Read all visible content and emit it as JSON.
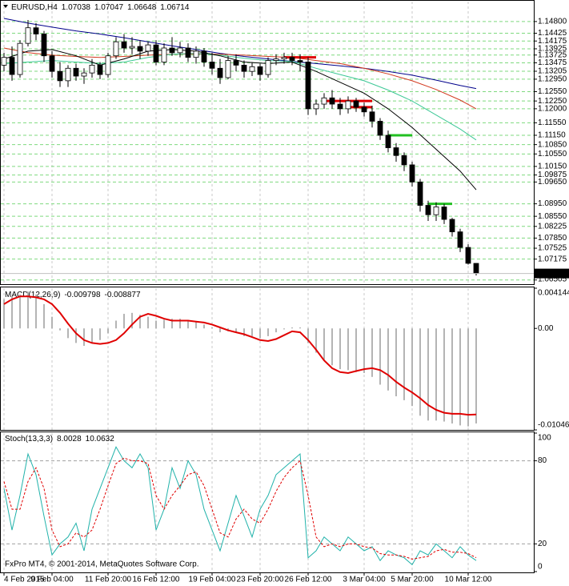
{
  "chart_data": [
    {
      "type": "candlestick",
      "title": "EURUSD,H4",
      "categories": [
        "4 Feb 2015",
        null,
        null,
        null,
        null,
        null,
        "9 Feb 04:00",
        null,
        null,
        null,
        null,
        null,
        null,
        "11 Feb 20:00",
        null,
        null,
        null,
        null,
        null,
        "16 Feb 12:00",
        null,
        null,
        null,
        null,
        null,
        null,
        "19 Feb 04:00",
        null,
        null,
        null,
        null,
        null,
        "23 Feb 20:00",
        null,
        null,
        null,
        null,
        null,
        "26 Feb 12:00",
        null,
        null,
        null,
        null,
        null,
        null,
        "3 Mar 04:00",
        null,
        null,
        null,
        null,
        null,
        "5 Mar 20:00",
        null,
        null,
        null,
        null,
        null,
        null,
        "10 Mar 12:00",
        null
      ],
      "open": [
        1.134,
        1.1365,
        1.131,
        1.141,
        1.146,
        1.144,
        1.137,
        1.132,
        1.129,
        1.133,
        1.1305,
        1.1315,
        1.134,
        1.131,
        1.137,
        1.1415,
        1.1395,
        1.14,
        1.1385,
        1.1405,
        1.135,
        1.1395,
        1.138,
        1.1395,
        1.1365,
        1.1385,
        1.135,
        1.133,
        1.13,
        1.1355,
        1.134,
        1.132,
        1.1335,
        1.131,
        1.1355,
        1.136,
        1.1365,
        1.1355,
        1.135,
        1.12,
        1.1215,
        1.1235,
        1.1215,
        1.12,
        1.1225,
        1.1205,
        1.119,
        1.116,
        1.1115,
        1.1075,
        1.105,
        1.102,
        1.0965,
        1.089,
        1.086,
        1.0885,
        1.0845,
        1.0805,
        1.0755,
        1.07038
      ],
      "high": [
        1.138,
        1.14,
        1.142,
        1.1485,
        1.1475,
        1.145,
        1.1385,
        1.135,
        1.134,
        1.1345,
        1.133,
        1.136,
        1.135,
        1.138,
        1.143,
        1.144,
        1.143,
        1.142,
        1.1415,
        1.142,
        1.141,
        1.143,
        1.1415,
        1.141,
        1.14,
        1.1395,
        1.138,
        1.136,
        1.137,
        1.1375,
        1.1355,
        1.135,
        1.1345,
        1.1365,
        1.1375,
        1.138,
        1.138,
        1.1375,
        1.1365,
        1.123,
        1.125,
        1.126,
        1.1235,
        1.124,
        1.1235,
        1.122,
        1.121,
        1.117,
        1.113,
        1.109,
        1.106,
        1.103,
        1.0975,
        1.0905,
        1.09,
        1.0895,
        1.085,
        1.0815,
        1.0765,
        1.07047
      ],
      "low": [
        1.132,
        1.129,
        1.13,
        1.14,
        1.142,
        1.135,
        1.13,
        1.127,
        1.127,
        1.129,
        1.128,
        1.13,
        1.1295,
        1.13,
        1.136,
        1.138,
        1.1375,
        1.136,
        1.137,
        1.134,
        1.134,
        1.137,
        1.1365,
        1.135,
        1.1345,
        1.1335,
        1.131,
        1.128,
        1.1295,
        1.132,
        1.13,
        1.1305,
        1.129,
        1.13,
        1.134,
        1.1345,
        1.134,
        1.132,
        1.118,
        1.118,
        1.12,
        1.12,
        1.118,
        1.1185,
        1.119,
        1.1175,
        1.114,
        1.11,
        1.106,
        1.103,
        1.1,
        1.095,
        1.087,
        1.084,
        1.084,
        1.083,
        1.079,
        1.074,
        1.07,
        1.06648
      ],
      "close": [
        1.1365,
        1.131,
        1.141,
        1.146,
        1.144,
        1.137,
        1.132,
        1.129,
        1.133,
        1.1305,
        1.1315,
        1.134,
        1.131,
        1.137,
        1.1415,
        1.1395,
        1.14,
        1.1385,
        1.1405,
        1.135,
        1.1395,
        1.138,
        1.1395,
        1.1365,
        1.1385,
        1.135,
        1.133,
        1.13,
        1.1355,
        1.134,
        1.132,
        1.1335,
        1.131,
        1.1355,
        1.136,
        1.1365,
        1.1355,
        1.135,
        1.12,
        1.1215,
        1.1235,
        1.1215,
        1.12,
        1.1225,
        1.1205,
        1.119,
        1.116,
        1.1115,
        1.1075,
        1.105,
        1.102,
        1.0965,
        1.089,
        1.086,
        1.0885,
        1.0845,
        1.0805,
        1.0755,
        1.0704,
        1.06714
      ],
      "color": "#000000",
      "series": [
        {
          "color": "#00008b",
          "x": [
            0,
            3,
            6,
            9,
            12,
            15,
            18,
            21,
            24,
            27,
            30,
            33,
            36,
            39,
            42,
            45,
            48,
            51,
            54,
            57,
            59
          ],
          "values": [
            1.149,
            1.1475,
            1.1462,
            1.145,
            1.144,
            1.1428,
            1.1415,
            1.1402,
            1.139,
            1.1378,
            1.1368,
            1.136,
            1.1352,
            1.1345,
            1.1338,
            1.133,
            1.132,
            1.1308,
            1.1292,
            1.1275,
            1.1265
          ]
        },
        {
          "color": "#d2391e",
          "x": [
            0,
            3,
            6,
            9,
            12,
            15,
            18,
            21,
            24,
            27,
            30,
            33,
            36,
            39,
            42,
            45,
            48,
            51,
            54,
            57,
            59
          ],
          "values": [
            1.1395,
            1.138,
            1.1372,
            1.1368,
            1.1365,
            1.1368,
            1.1372,
            1.1375,
            1.1376,
            1.1375,
            1.1372,
            1.1368,
            1.1365,
            1.1355,
            1.1345,
            1.133,
            1.1312,
            1.129,
            1.1262,
            1.1228,
            1.12
          ]
        },
        {
          "color": "#3cc896",
          "x": [
            0,
            3,
            6,
            9,
            12,
            15,
            18,
            21,
            24,
            27,
            30,
            33,
            36,
            39,
            42,
            45,
            48,
            51,
            54,
            57,
            59
          ],
          "values": [
            1.1345,
            1.135,
            1.1355,
            1.135,
            1.1345,
            1.135,
            1.1365,
            1.1375,
            1.1378,
            1.1372,
            1.1362,
            1.1355,
            1.1352,
            1.133,
            1.131,
            1.129,
            1.126,
            1.1225,
            1.118,
            1.1135,
            1.11
          ]
        },
        {
          "color": "#000000",
          "x": [
            0,
            3,
            6,
            9,
            12,
            15,
            18,
            21,
            24,
            27,
            30,
            33,
            36,
            39,
            42,
            45,
            48,
            51,
            54,
            57,
            59
          ],
          "values": [
            1.136,
            1.1385,
            1.139,
            1.137,
            1.134,
            1.136,
            1.1385,
            1.139,
            1.1385,
            1.137,
            1.135,
            1.1345,
            1.135,
            1.132,
            1.1285,
            1.125,
            1.12,
            1.114,
            1.107,
            1.1,
            1.094
          ]
        }
      ],
      "segments": [
        {
          "x": [
            35,
            39
          ],
          "value": 1.1365,
          "color": "#e00000"
        },
        {
          "x": [
            40,
            46
          ],
          "value": 1.1225,
          "color": "#e00000"
        },
        {
          "x": [
            43,
            46
          ],
          "value": 1.1205,
          "color": "#e00000"
        },
        {
          "x": [
            48,
            51
          ],
          "value": 1.1115,
          "color": "#22c022"
        },
        {
          "x": [
            53,
            56
          ],
          "value": 1.0895,
          "color": "#22c022"
        }
      ],
      "ylim": [
        1.0637,
        1.1544
      ],
      "yticks": [
        {
          "value": 1.148,
          "label": "1.14800"
        },
        1.14425,
        1.14175,
        1.13925,
        1.13725,
        1.13475,
        1.13205,
        {
          "value": 1.1295,
          "label": "1.12950"
        },
        {
          "value": 1.1255,
          "label": "1.12550"
        },
        {
          "value": 1.1225,
          "label": "1.12250"
        },
        {
          "value": 1.12,
          "label": "1.12000"
        },
        {
          "value": 1.1155,
          "label": "1.11550"
        },
        {
          "value": 1.1115,
          "label": "1.11150"
        },
        {
          "value": 1.1085,
          "label": "1.10850"
        },
        {
          "value": 1.1055,
          "label": "1.10550"
        },
        {
          "value": 1.1015,
          "label": "1.10150"
        },
        1.09875,
        {
          "value": 1.0965,
          "label": "1.09650"
        },
        {
          "value": 1.0895,
          "label": "1.08950"
        },
        {
          "value": 1.0855,
          "label": "1.08550"
        },
        1.08225,
        {
          "value": 1.0785,
          "label": "1.07850"
        },
        1.07525,
        1.07175,
        1.06505
      ],
      "grid": true,
      "grid_color": "#7fd97f"
    },
    {
      "type": "macd",
      "title": "MACD(12,26,9)",
      "series": [
        {
          "style": "histogram",
          "color": "#b4b4b4",
          "values": [
            0.003,
            0.0033,
            0.0035,
            0.0038,
            0.0035,
            0.0025,
            0.0012,
            -0.0002,
            -0.001,
            -0.0015,
            -0.0018,
            -0.0015,
            -0.0012,
            -0.0005,
            0.0008,
            0.0015,
            0.0016,
            0.0014,
            0.0012,
            0.0008,
            0.0009,
            0.001,
            0.001,
            0.0008,
            0.0007,
            0.0004,
            0.0001,
            -0.0004,
            -0.0003,
            -0.0004,
            -0.0008,
            -0.0008,
            -0.001,
            -0.0008,
            -0.0004,
            -0.0001,
            0.0001,
            0.0001,
            -0.0015,
            -0.0025,
            -0.0032,
            -0.0038,
            -0.0042,
            -0.0043,
            -0.0045,
            -0.0046,
            -0.005,
            -0.0058,
            -0.0064,
            -0.007,
            -0.0074,
            -0.008,
            -0.009,
            -0.0095,
            -0.0095,
            -0.0096,
            -0.0098,
            -0.01,
            -0.0101,
            -0.009798
          ]
        },
        {
          "style": "line",
          "color": "#e00000",
          "values": [
            0.0025,
            0.003,
            0.0033,
            0.0033,
            0.0032,
            0.003,
            0.0025,
            0.0016,
            0.0005,
            -0.0005,
            -0.0012,
            -0.0015,
            -0.0016,
            -0.0015,
            -0.0012,
            -0.0005,
            0.0004,
            0.0012,
            0.0015,
            0.0013,
            0.001,
            0.0008,
            0.0008,
            0.0008,
            0.0007,
            0.0006,
            0.0004,
            0.0001,
            -0.0002,
            -0.0004,
            -0.0006,
            -0.0009,
            -0.0012,
            -0.0013,
            -0.0011,
            -0.0007,
            -0.0003,
            -0.0004,
            -0.0012,
            -0.0022,
            -0.0033,
            -0.0041,
            -0.0045,
            -0.0046,
            -0.0044,
            -0.0042,
            -0.0041,
            -0.0043,
            -0.0048,
            -0.0055,
            -0.0061,
            -0.0066,
            -0.0072,
            -0.0079,
            -0.0084,
            -0.0087,
            -0.0088,
            -0.0088,
            -0.0089,
            -0.008877
          ]
        }
      ],
      "ylim": [
        -0.010462,
        0.004144
      ],
      "yticks": [
        -0.010462,
        {
          "value": 0,
          "label": "0.00"
        },
        0.004144
      ]
    },
    {
      "type": "stochastic",
      "title": "Stoch(13,3,3)",
      "series": [
        {
          "style": "line",
          "color": "#20b2aa",
          "values": [
            60,
            30,
            55,
            85,
            70,
            40,
            12,
            20,
            25,
            35,
            15,
            45,
            60,
            75,
            90,
            80,
            75,
            85,
            75,
            30,
            45,
            75,
            60,
            80,
            70,
            45,
            30,
            15,
            35,
            55,
            40,
            25,
            45,
            55,
            70,
            75,
            80,
            85,
            10,
            15,
            25,
            20,
            15,
            25,
            20,
            15,
            18,
            8,
            15,
            12,
            10,
            5,
            15,
            12,
            20,
            15,
            10,
            18,
            12,
            8.0028
          ]
        },
        {
          "style": "dashed",
          "color": "#e00000",
          "values": [
            65,
            45,
            45,
            65,
            75,
            60,
            30,
            18,
            20,
            28,
            25,
            30,
            45,
            62,
            78,
            82,
            80,
            80,
            78,
            55,
            45,
            55,
            62,
            70,
            72,
            62,
            45,
            28,
            25,
            38,
            45,
            38,
            35,
            45,
            58,
            68,
            75,
            80,
            55,
            25,
            18,
            20,
            18,
            20,
            20,
            18,
            17,
            13,
            12,
            12,
            11,
            9,
            10,
            11,
            15,
            16,
            14,
            14,
            13,
            10.0632
          ]
        }
      ],
      "ylim": [
        0,
        100
      ],
      "yticks": [
        0,
        20,
        80,
        100
      ],
      "footer": "FxPro MT4, © 2001-2014, MetaQuotes Software Corp."
    }
  ]
}
